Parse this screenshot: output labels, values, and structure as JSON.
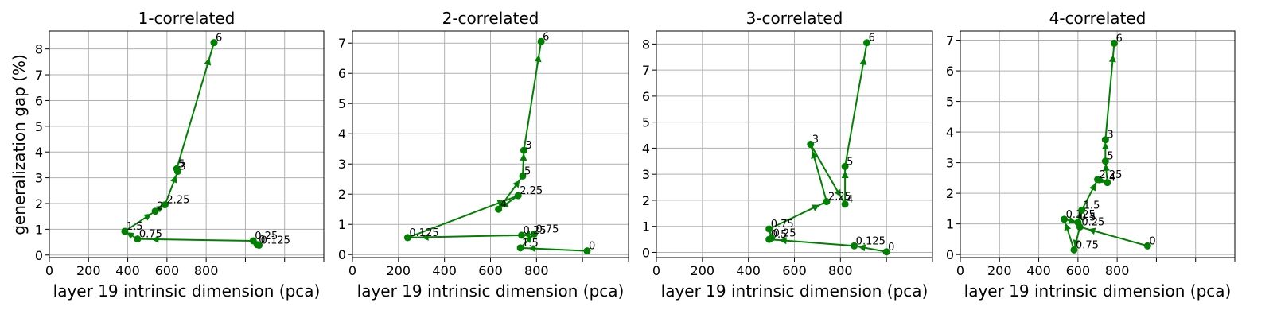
{
  "figure": {
    "ylabel": "generalization gap (%)",
    "series_color": "#008000",
    "grid_color": "#b0b0b0"
  },
  "chart_data": [
    {
      "type": "line",
      "title": "1-correlated",
      "xlabel": "layer 19 intrinsic dimension (pca)",
      "ylabel": "generalization gap (%)",
      "xlim": [
        0,
        1400
      ],
      "ylim": [
        -0.1,
        8.7
      ],
      "xticks": [
        0,
        200,
        400,
        600,
        800,
        1000,
        1200,
        1400
      ],
      "xtick_labels": [
        "0",
        "200",
        "400",
        "600",
        "800",
        "",
        "",
        ""
      ],
      "yticks": [
        0,
        1,
        2,
        3,
        4,
        5,
        6,
        7,
        8
      ],
      "grid": true,
      "points": [
        {
          "label": "0",
          "x": 1060,
          "y": 0.4
        },
        {
          "label": "0.125",
          "x": 1070,
          "y": 0.38
        },
        {
          "label": "0.25",
          "x": 1040,
          "y": 0.55
        },
        {
          "label": "0.75",
          "x": 450,
          "y": 0.62
        },
        {
          "label": "1.5",
          "x": 385,
          "y": 0.92
        },
        {
          "label": "2",
          "x": 540,
          "y": 1.7
        },
        {
          "label": "2.25",
          "x": 590,
          "y": 1.95
        },
        {
          "label": "3",
          "x": 655,
          "y": 3.25
        },
        {
          "label": "5",
          "x": 650,
          "y": 3.35
        },
        {
          "label": "6",
          "x": 840,
          "y": 8.25
        }
      ]
    },
    {
      "type": "line",
      "title": "2-correlated",
      "xlabel": "layer 19 intrinsic dimension (pca)",
      "ylabel": "",
      "xlim": [
        0,
        1200
      ],
      "ylim": [
        -0.1,
        7.4
      ],
      "xticks": [
        0,
        200,
        400,
        600,
        800,
        1000,
        1200
      ],
      "xtick_labels": [
        "0",
        "200",
        "400",
        "600",
        "800",
        "",
        ""
      ],
      "yticks": [
        0,
        1,
        2,
        3,
        4,
        5,
        6,
        7
      ],
      "grid": true,
      "points": [
        {
          "label": "0",
          "x": 1020,
          "y": 0.12
        },
        {
          "label": "1.5",
          "x": 730,
          "y": 0.22
        },
        {
          "label": "0.75",
          "x": 790,
          "y": 0.68
        },
        {
          "label": "0.25",
          "x": 735,
          "y": 0.64
        },
        {
          "label": "0.125",
          "x": 240,
          "y": 0.56
        },
        {
          "label": "2.25",
          "x": 720,
          "y": 1.95
        },
        {
          "label": "4",
          "x": 635,
          "y": 1.5
        },
        {
          "label": "5",
          "x": 740,
          "y": 2.6
        },
        {
          "label": "3",
          "x": 745,
          "y": 3.45
        },
        {
          "label": "6",
          "x": 820,
          "y": 7.05
        }
      ]
    },
    {
      "type": "line",
      "title": "3-correlated",
      "xlabel": "layer 19 intrinsic dimension (pca)",
      "ylabel": "",
      "xlim": [
        0,
        1200
      ],
      "ylim": [
        -0.2,
        8.5
      ],
      "xticks": [
        0,
        200,
        400,
        600,
        800,
        1000,
        1200
      ],
      "xtick_labels": [
        "0",
        "200",
        "400",
        "600",
        "800",
        "",
        ""
      ],
      "yticks": [
        0,
        1,
        2,
        3,
        4,
        5,
        6,
        7,
        8
      ],
      "grid": true,
      "points": [
        {
          "label": "0",
          "x": 1000,
          "y": 0.02
        },
        {
          "label": "0.125",
          "x": 860,
          "y": 0.25
        },
        {
          "label": "0.5",
          "x": 490,
          "y": 0.5
        },
        {
          "label": "0.25",
          "x": 500,
          "y": 0.55
        },
        {
          "label": "0.75",
          "x": 490,
          "y": 0.9
        },
        {
          "label": "2.25",
          "x": 740,
          "y": 1.95
        },
        {
          "label": "3",
          "x": 670,
          "y": 4.15
        },
        {
          "label": "4",
          "x": 820,
          "y": 1.85
        },
        {
          "label": "5",
          "x": 820,
          "y": 3.3
        },
        {
          "label": "6",
          "x": 915,
          "y": 8.05
        }
      ]
    },
    {
      "type": "line",
      "title": "4-correlated",
      "xlabel": "layer 19 intrinsic dimension (pca)",
      "ylabel": "",
      "xlim": [
        0,
        1400
      ],
      "ylim": [
        -0.1,
        7.3
      ],
      "xticks": [
        0,
        200,
        400,
        600,
        800,
        1000,
        1200,
        1400
      ],
      "xtick_labels": [
        "0",
        "200",
        "400",
        "600",
        "800",
        "",
        "",
        ""
      ],
      "yticks": [
        0,
        1,
        2,
        3,
        4,
        5,
        6,
        7
      ],
      "grid": true,
      "points": [
        {
          "label": "0",
          "x": 955,
          "y": 0.28
        },
        {
          "label": "0.25",
          "x": 610,
          "y": 0.9
        },
        {
          "label": "0.75",
          "x": 580,
          "y": 0.15
        },
        {
          "label": "0.125",
          "x": 530,
          "y": 1.15
        },
        {
          "label": "0.5",
          "x": 600,
          "y": 1.05
        },
        {
          "label": "1.5",
          "x": 620,
          "y": 1.45
        },
        {
          "label": "2.25",
          "x": 700,
          "y": 2.45
        },
        {
          "label": "4",
          "x": 750,
          "y": 2.35
        },
        {
          "label": "5",
          "x": 740,
          "y": 3.05
        },
        {
          "label": "3",
          "x": 740,
          "y": 3.75
        },
        {
          "label": "6",
          "x": 785,
          "y": 6.9
        }
      ]
    }
  ]
}
